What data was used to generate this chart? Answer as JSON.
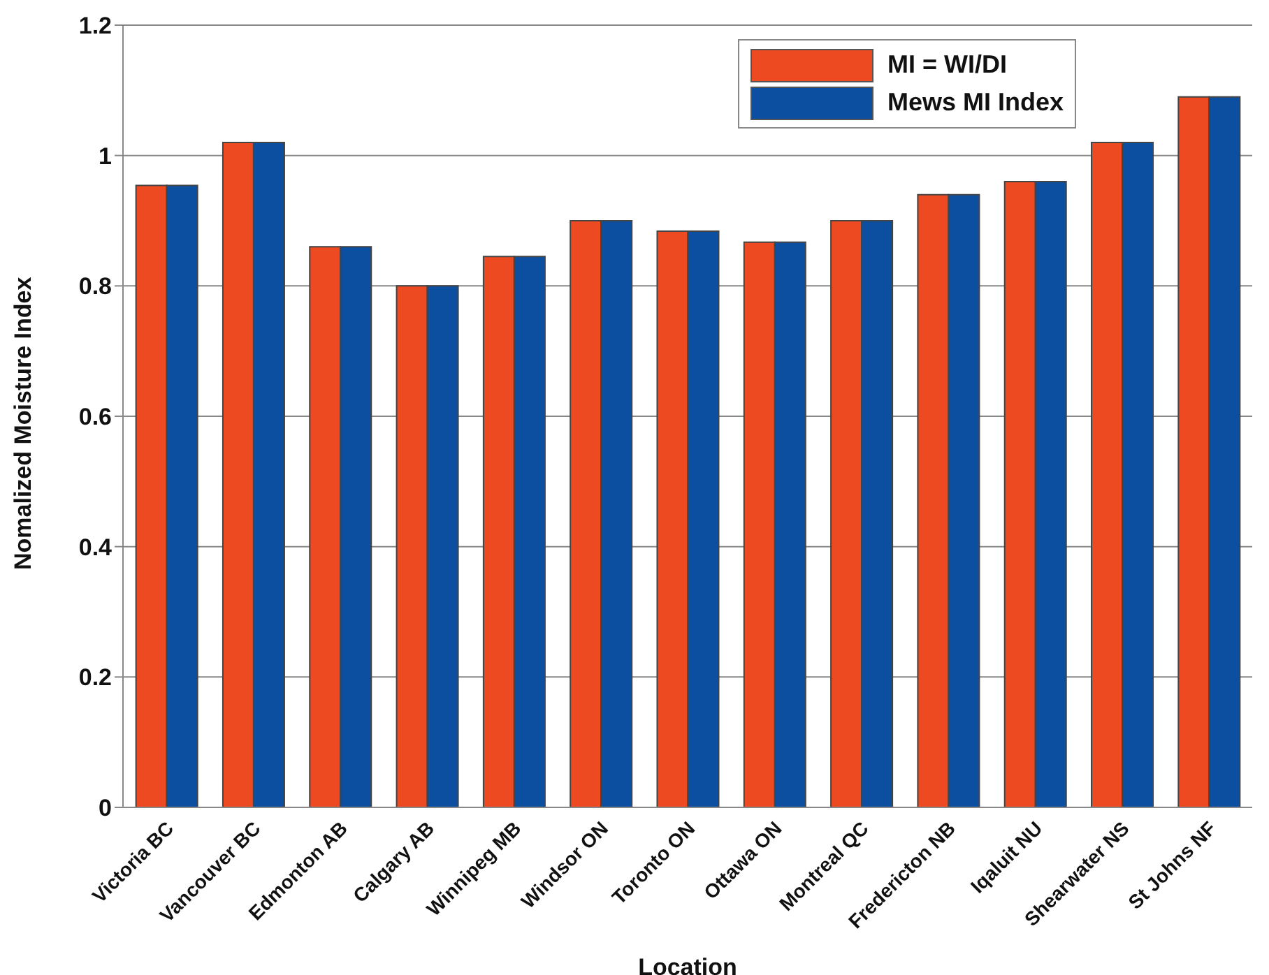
{
  "chart_data": {
    "type": "bar",
    "xlabel": "Location",
    "ylabel": "Nomalized Moisture Index",
    "categories": [
      "Victoria BC",
      "Vancouver BC",
      "Edmonton AB",
      "Calgary AB",
      "Winnipeg MB",
      "Windsor ON",
      "Toronto ON",
      "Ottawa ON",
      "Montreal QC",
      "Fredericton NB",
      "Iqaluit NU",
      "Shearwater NS",
      "St Johns NF"
    ],
    "series": [
      {
        "name": "MI = WI/DI",
        "color": "#ee4a22",
        "values": [
          0.954,
          1.02,
          0.86,
          0.8,
          0.845,
          0.9,
          0.884,
          0.867,
          0.9,
          0.94,
          0.96,
          1.02,
          1.09
        ]
      },
      {
        "name": "Mews MI Index",
        "color": "#0c4ea0",
        "values": [
          0.954,
          1.02,
          0.86,
          0.8,
          0.845,
          0.9,
          0.884,
          0.867,
          0.9,
          0.94,
          0.96,
          1.02,
          1.09
        ]
      }
    ],
    "ylim": [
      0,
      1.2
    ],
    "yticks": [
      0,
      0.2,
      0.4,
      0.6,
      0.8,
      1,
      1.2
    ],
    "grid": "y",
    "legend": "top right"
  }
}
